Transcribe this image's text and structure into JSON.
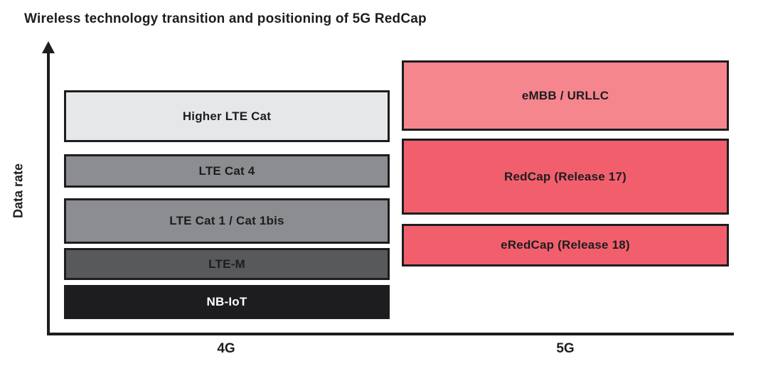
{
  "title": "Wireless technology transition and positioning of 5G RedCap",
  "axes": {
    "y_label": "Data rate",
    "x_categories": [
      "4G",
      "5G"
    ]
  },
  "colors": {
    "axis": "#1d1d1f",
    "box_border": "#1d1d1f",
    "text_dark": "#1d1d1f",
    "text_light": "#ffffff"
  },
  "columns": {
    "g4": {
      "label": "4G",
      "boxes": [
        {
          "label": "Higher LTE Cat",
          "color": "#e6e7e9",
          "text": "#1d1d1f"
        },
        {
          "label": "LTE Cat 4",
          "color": "#8b8d90",
          "text": "#1d1d1f"
        },
        {
          "label": "LTE Cat 1 / Cat 1bis",
          "color": "#8b8d90",
          "text": "#1d1d1f"
        },
        {
          "label": "LTE-M",
          "color": "#58595b",
          "text": "#1d1d1f"
        },
        {
          "label": "NB-IoT",
          "color": "#1d1d1f",
          "text": "#ffffff"
        }
      ]
    },
    "g5": {
      "label": "5G",
      "boxes": [
        {
          "label": "eMBB / URLLC",
          "color": "#f6868e",
          "text": "#1d1d1f"
        },
        {
          "label": "RedCap (Release 17)",
          "color": "#f25f6c",
          "text": "#1d1d1f"
        },
        {
          "label": "eRedCap (Release 18)",
          "color": "#f25f6c",
          "text": "#1d1d1f"
        }
      ]
    }
  }
}
